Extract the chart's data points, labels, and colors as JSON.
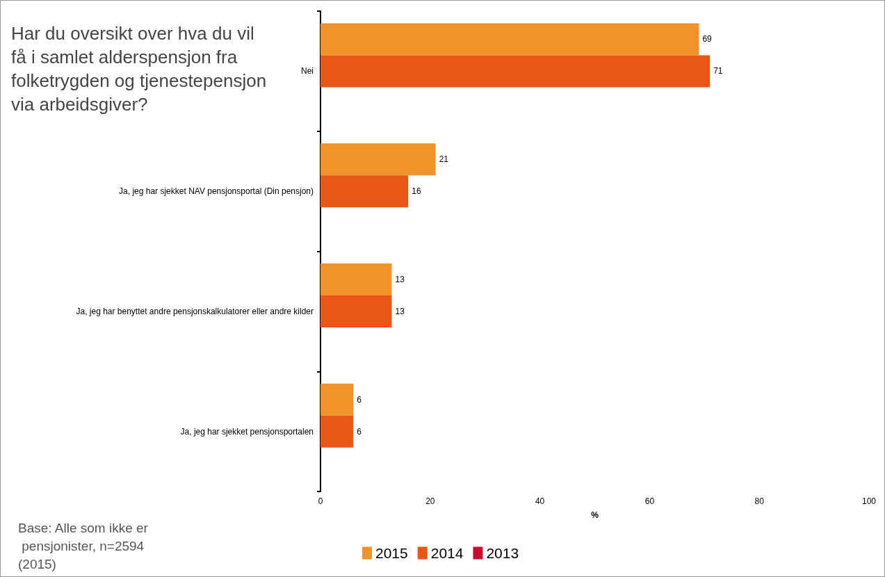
{
  "chart_data": {
    "type": "bar",
    "orientation": "horizontal",
    "title": "Har du oversikt over hva du vil få i samlet alderspensjon fra folketrygden og tjenestepensjon via arbeidsgiver?",
    "xlabel": "%",
    "categories": [
      "Nei",
      "Ja, jeg har sjekket NAV pensjonsportal (Din pensjon)",
      "Ja, jeg har benyttet andre pensjonskalkulatorer eller andre kilder",
      "Ja, jeg har sjekket pensjonsportalen"
    ],
    "series": [
      {
        "name": "2015",
        "color": "#f0932a",
        "values": [
          69,
          21,
          13,
          6
        ]
      },
      {
        "name": "2014",
        "color": "#e95718",
        "values": [
          71,
          16,
          13,
          6
        ]
      },
      {
        "name": "2013",
        "color": "#c8102e",
        "values": [
          null,
          null,
          null,
          null
        ]
      }
    ],
    "xlim": [
      0,
      100
    ],
    "xticks": [
      0,
      20,
      40,
      60,
      80,
      100
    ],
    "data_labels": true,
    "grid": false,
    "legend": "bottom",
    "annotations": [
      "Base: Alle som ikke er pensjonister, n=2594 (2015)"
    ]
  }
}
